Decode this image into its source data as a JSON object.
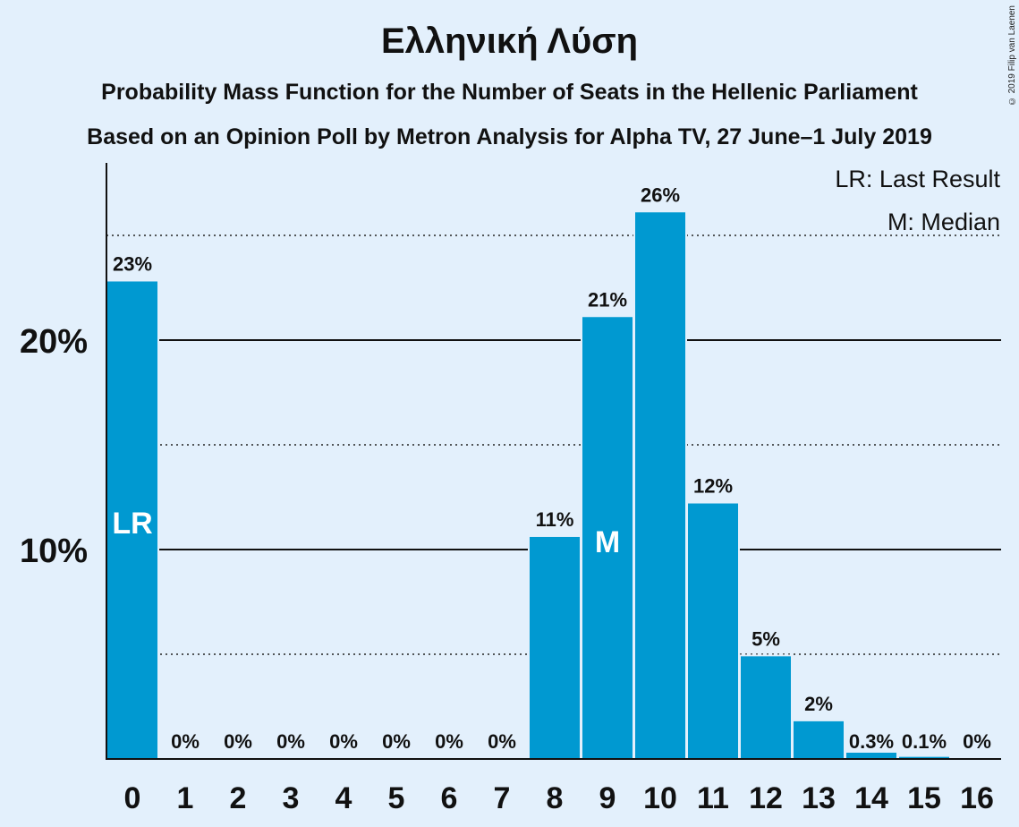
{
  "title": "Ελληνική Λύση",
  "subtitle_1": "Probability Mass Function for the Number of Seats in the Hellenic Parliament",
  "subtitle_2": "Based on an Opinion Poll by Metron Analysis for Alpha TV, 27 June–1 July 2019",
  "copyright": "© 2019 Filip van Laenen",
  "legend": {
    "last_result": "LR: Last Result",
    "median": "M: Median"
  },
  "colors": {
    "bar": "#0099d1",
    "background": "#e3f0fc",
    "text": "#111111"
  },
  "chart_data": {
    "type": "bar",
    "categories": [
      "0",
      "1",
      "2",
      "3",
      "4",
      "5",
      "6",
      "7",
      "8",
      "9",
      "10",
      "11",
      "12",
      "13",
      "14",
      "15",
      "16"
    ],
    "values": [
      22.8,
      0,
      0,
      0,
      0,
      0,
      0,
      0,
      10.6,
      21.1,
      26.1,
      12.2,
      4.9,
      1.8,
      0.3,
      0.1,
      0
    ],
    "value_labels": [
      "23%",
      "0%",
      "0%",
      "0%",
      "0%",
      "0%",
      "0%",
      "0%",
      "11%",
      "21%",
      "26%",
      "12%",
      "5%",
      "2%",
      "0.3%",
      "0.1%",
      "0%"
    ],
    "bar_markers": [
      {
        "category": "0",
        "text": "LR"
      },
      {
        "category": "9",
        "text": "M"
      }
    ],
    "y_ticks": [
      {
        "value": 10,
        "label": "10%"
      },
      {
        "value": 20,
        "label": "20%"
      }
    ],
    "dotted_gridlines": [
      5,
      15,
      25
    ],
    "ylim": [
      0,
      28.5
    ],
    "legend_position": "top-right"
  }
}
